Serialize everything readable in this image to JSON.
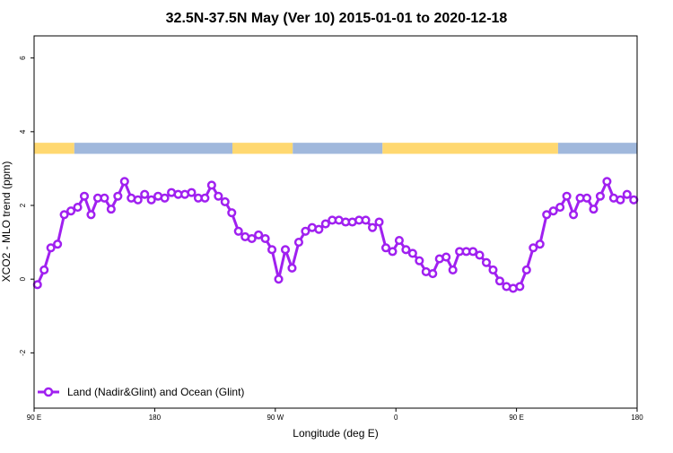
{
  "chart_data": {
    "type": "line",
    "title": "32.5N-37.5N May (Ver 10)   2015-01-01 to 2020-12-18",
    "xlabel": "Longitude (deg E)",
    "ylabel": "XCO2 - MLO trend (ppm)",
    "xlim": [
      90,
      540
    ],
    "ylim": [
      -3.5,
      6.6
    ],
    "x_ticks": [
      {
        "value": 90,
        "label": "90 E"
      },
      {
        "value": 180,
        "label": "180"
      },
      {
        "value": 270,
        "label": "90 W"
      },
      {
        "value": 360,
        "label": "0"
      },
      {
        "value": 450,
        "label": "90 E"
      },
      {
        "value": 540,
        "label": "180"
      }
    ],
    "y_ticks": [
      {
        "value": -2,
        "label": "-2"
      },
      {
        "value": 0,
        "label": "0"
      },
      {
        "value": 2,
        "label": "2"
      },
      {
        "value": 4,
        "label": "4"
      },
      {
        "value": 6,
        "label": "6"
      }
    ],
    "grid": false,
    "legend_position": "bottom-left",
    "land_ocean_band": {
      "y_range": [
        3.4,
        3.7
      ],
      "land_color": "#FFD870",
      "ocean_color": "#A0B8DC",
      "segments": [
        {
          "type": "land",
          "x": [
            90,
            120
          ]
        },
        {
          "type": "ocean",
          "x": [
            120,
            238
          ]
        },
        {
          "type": "land",
          "x": [
            238,
            283
          ]
        },
        {
          "type": "ocean",
          "x": [
            283,
            350
          ]
        },
        {
          "type": "land",
          "x": [
            350,
            481
          ]
        },
        {
          "type": "ocean",
          "x": [
            481,
            540
          ]
        }
      ]
    },
    "series": [
      {
        "name": "Land (Nadir&Glint) and Ocean (Glint)",
        "color": "#A020F0",
        "x": [
          92.5,
          97.5,
          102.5,
          107.5,
          112.5,
          117.5,
          122.5,
          127.5,
          132.5,
          137.5,
          142.5,
          147.5,
          152.5,
          157.5,
          162.5,
          167.5,
          172.5,
          177.5,
          182.5,
          187.5,
          192.5,
          197.5,
          202.5,
          207.5,
          212.5,
          217.5,
          222.5,
          227.5,
          232.5,
          237.5,
          242.5,
          247.5,
          252.5,
          257.5,
          262.5,
          267.5,
          272.5,
          277.5,
          282.5,
          287.5,
          292.5,
          297.5,
          302.5,
          307.5,
          312.5,
          317.5,
          322.5,
          327.5,
          332.5,
          337.5,
          342.5,
          347.5,
          352.5,
          357.5,
          362.5,
          367.5,
          372.5,
          377.5,
          382.5,
          387.5,
          392.5,
          397.5,
          402.5,
          407.5,
          412.5,
          417.5,
          422.5,
          427.5,
          432.5,
          437.5,
          442.5,
          447.5,
          452.5,
          457.5,
          462.5,
          467.5,
          472.5,
          477.5,
          482.5,
          487.5,
          492.5,
          497.5,
          502.5,
          507.5,
          512.5,
          517.5,
          522.5,
          527.5,
          532.5,
          537.5
        ],
        "values": [
          -0.15,
          0.25,
          0.85,
          0.95,
          1.75,
          1.85,
          1.95,
          2.25,
          1.75,
          2.2,
          2.2,
          1.9,
          2.25,
          2.65,
          2.2,
          2.15,
          2.3,
          2.15,
          2.25,
          2.2,
          2.35,
          2.3,
          2.3,
          2.35,
          2.2,
          2.2,
          2.55,
          2.25,
          2.1,
          1.8,
          1.3,
          1.15,
          1.1,
          1.2,
          1.1,
          0.8,
          0.0,
          0.8,
          0.3,
          1.0,
          1.3,
          1.4,
          1.35,
          1.5,
          1.6,
          1.6,
          1.55,
          1.55,
          1.6,
          1.6,
          1.4,
          1.55,
          0.85,
          0.75,
          1.05,
          0.8,
          0.7,
          0.5,
          0.2,
          0.15,
          0.55,
          0.6,
          0.25,
          0.75,
          0.75,
          0.75,
          0.65,
          0.45,
          0.25,
          -0.05,
          -0.2,
          -0.25,
          -0.2,
          0.25,
          0.85,
          0.95,
          1.75,
          1.85,
          1.95,
          2.25,
          1.75,
          2.2,
          2.2,
          1.9,
          2.25,
          2.65,
          2.2,
          2.15,
          2.3,
          2.15
        ]
      }
    ]
  }
}
